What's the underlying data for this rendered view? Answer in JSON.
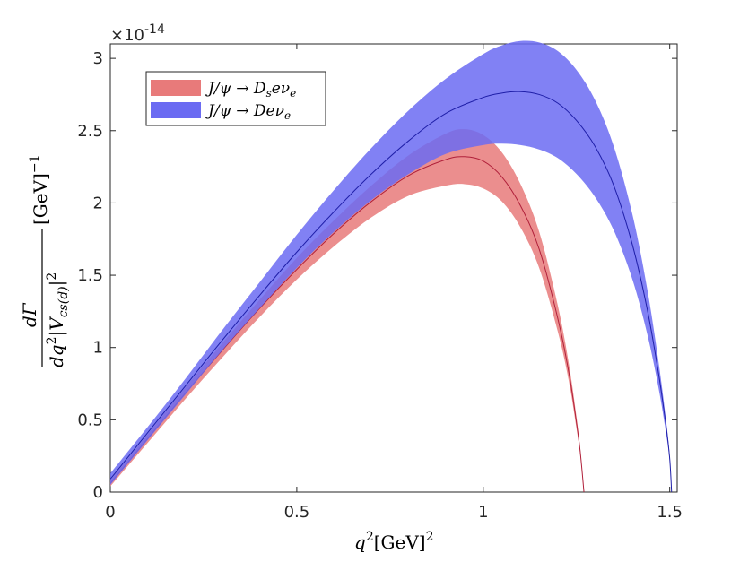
{
  "chart_data": {
    "type": "area",
    "x_exponent": "",
    "y_exponent_label": "×10",
    "y_exponent_power": "-14",
    "xlabel": {
      "base": "q",
      "power": "2",
      "unit": "[GeV]",
      "unit_power": "2"
    },
    "ylabel": {
      "numerator": "dΓ",
      "denominator_main": "dq",
      "denominator_power": "2",
      "denominator_abs": "|V",
      "denominator_sub": "cs(d)",
      "denominator_abs_close": "|",
      "denominator_abs_power": "2",
      "unit": "[GeV]",
      "unit_power": "−1"
    },
    "xlim": [
      0,
      1.52
    ],
    "ylim": [
      0,
      3.1
    ],
    "x_ticks": [
      "0",
      "0.5",
      "1",
      "1.5"
    ],
    "x_tick_values": [
      0,
      0.5,
      1,
      1.5
    ],
    "y_ticks": [
      "0",
      "0.5",
      "1",
      "1.5",
      "2",
      "2.5",
      "3"
    ],
    "y_tick_values": [
      0,
      0.5,
      1,
      1.5,
      2,
      2.5,
      3
    ],
    "grid": false,
    "legend_placement": "top-left",
    "series": [
      {
        "name": "J/ψ → D_s e ν_e",
        "legend_label_parts": [
          "J/ψ → D",
          "s",
          "eν",
          "e"
        ],
        "fill_color": "#e87a7a",
        "line_color": "#b0203a",
        "x": [
          0.0,
          0.1,
          0.2,
          0.3,
          0.4,
          0.5,
          0.6,
          0.7,
          0.8,
          0.9,
          0.95,
          1.0,
          1.05,
          1.1,
          1.15,
          1.2,
          1.23,
          1.25,
          1.26,
          1.27
        ],
        "upper": [
          0.08,
          0.4,
          0.72,
          1.03,
          1.33,
          1.62,
          1.88,
          2.12,
          2.33,
          2.48,
          2.51,
          2.47,
          2.35,
          2.13,
          1.8,
          1.29,
          0.88,
          0.52,
          0.3,
          0.0
        ],
        "center": [
          0.06,
          0.37,
          0.68,
          0.98,
          1.27,
          1.54,
          1.79,
          2.01,
          2.19,
          2.3,
          2.32,
          2.29,
          2.18,
          1.98,
          1.68,
          1.2,
          0.82,
          0.48,
          0.28,
          0.0
        ],
        "lower": [
          0.04,
          0.34,
          0.64,
          0.93,
          1.21,
          1.47,
          1.7,
          1.9,
          2.05,
          2.12,
          2.13,
          2.1,
          2.01,
          1.83,
          1.55,
          1.11,
          0.76,
          0.44,
          0.26,
          0.0
        ]
      },
      {
        "name": "J/ψ → D e ν_e",
        "legend_label_parts": [
          "J/ψ → Deν",
          "e"
        ],
        "fill_color": "#6b6bf2",
        "line_color": "#1f1fa8",
        "x": [
          0.0,
          0.1,
          0.2,
          0.3,
          0.4,
          0.5,
          0.6,
          0.7,
          0.8,
          0.9,
          1.0,
          1.05,
          1.1,
          1.15,
          1.2,
          1.25,
          1.3,
          1.35,
          1.4,
          1.44,
          1.47,
          1.49,
          1.5,
          1.505
        ],
        "upper": [
          0.13,
          0.45,
          0.78,
          1.12,
          1.45,
          1.78,
          2.09,
          2.38,
          2.64,
          2.86,
          3.03,
          3.09,
          3.12,
          3.11,
          3.05,
          2.92,
          2.71,
          2.39,
          1.92,
          1.4,
          0.9,
          0.5,
          0.25,
          0.0
        ],
        "center": [
          0.09,
          0.41,
          0.73,
          1.05,
          1.36,
          1.66,
          1.94,
          2.2,
          2.43,
          2.62,
          2.73,
          2.76,
          2.77,
          2.75,
          2.69,
          2.57,
          2.39,
          2.12,
          1.71,
          1.26,
          0.82,
          0.46,
          0.23,
          0.0
        ],
        "lower": [
          0.05,
          0.36,
          0.67,
          0.98,
          1.27,
          1.55,
          1.8,
          2.02,
          2.2,
          2.34,
          2.4,
          2.41,
          2.4,
          2.37,
          2.31,
          2.2,
          2.04,
          1.81,
          1.47,
          1.09,
          0.72,
          0.41,
          0.21,
          0.0
        ]
      }
    ]
  }
}
